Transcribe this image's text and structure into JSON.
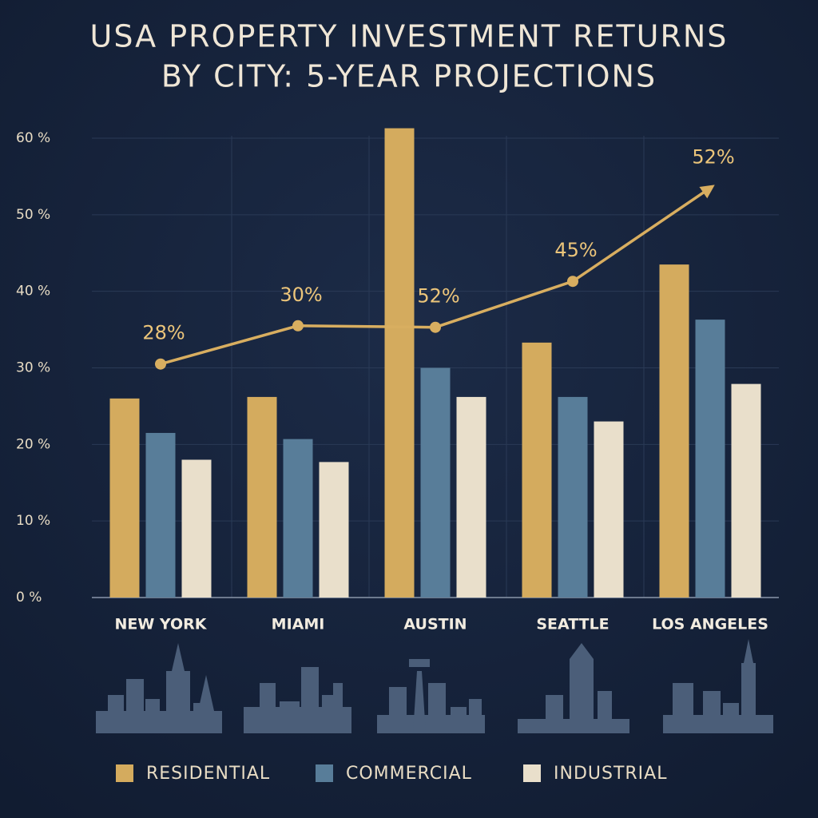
{
  "chart_data": {
    "type": "bar",
    "title": [
      "USA PROPERTY INVESTMENT RETURNS",
      "BY CITY: 5-YEAR PROJECTIONS"
    ],
    "categories": [
      "NEW YORK",
      "MIAMI",
      "AUSTIN",
      "SEATTLE",
      "LOS ANGELES"
    ],
    "series": [
      {
        "name": "RESIDENTIAL",
        "color": "#d4ab5e",
        "values": [
          26,
          26.2,
          61.3,
          33.3,
          43.5
        ]
      },
      {
        "name": "COMMERCIAL",
        "color": "#587d99",
        "values": [
          21.5,
          20.7,
          30,
          26.2,
          36.3
        ]
      },
      {
        "name": "INDUSTRIAL",
        "color": "#e9dfcb",
        "values": [
          18,
          17.7,
          26.2,
          23,
          27.9
        ]
      }
    ],
    "trend": {
      "color": "#d8ae60",
      "values": [
        30.5,
        35.5,
        35.3,
        41.3,
        53.5
      ]
    },
    "annotations": [
      "28%",
      "30%",
      "52%",
      "45%",
      "52%"
    ],
    "ylim": [
      0,
      60
    ],
    "yticks": [
      {
        "value": 0,
        "label": "0 %"
      },
      {
        "value": 10,
        "label": "10 %"
      },
      {
        "value": 20,
        "label": "20 %"
      },
      {
        "value": 30,
        "label": "30 %"
      },
      {
        "value": 40,
        "label": "40 %"
      },
      {
        "value": 50,
        "label": "50 %"
      },
      {
        "value": 60,
        "label": "60 %"
      }
    ],
    "grid": true
  }
}
